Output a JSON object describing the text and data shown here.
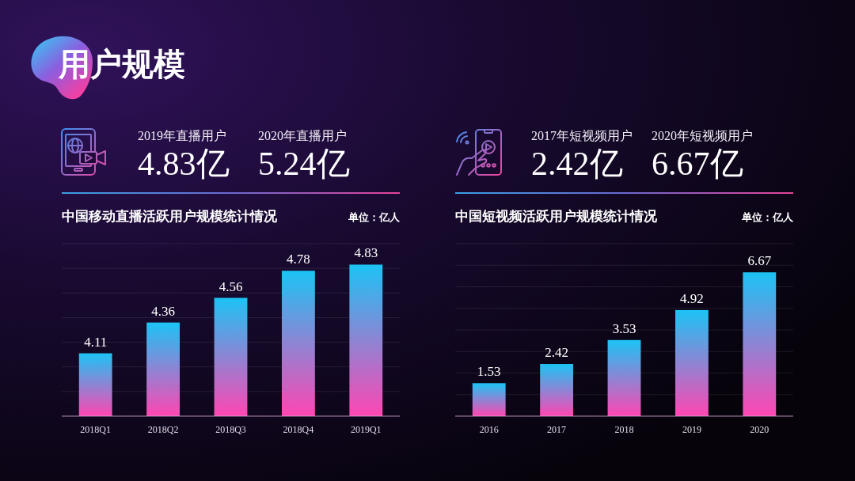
{
  "chart_data": [
    {
      "type": "other",
      "title": "用户规模"
    },
    {
      "type": "other",
      "annotations": [
        "2019年直播用户",
        "4.83亿",
        "2020年直播用户",
        "5.24亿"
      ]
    },
    {
      "type": "bar",
      "title": "中国移动直播活跃用户规模统计情况",
      "annotations": [
        "单位：亿人"
      ],
      "categories": [
        "2018Q1",
        "2018Q2",
        "2018Q3",
        "2018Q4",
        "2019Q1"
      ],
      "values": [
        4.11,
        4.36,
        4.56,
        4.78,
        4.83
      ],
      "color": "#1cc3f5",
      "ylim": [
        3.6,
        5.0
      ],
      "yticks": [
        {
          "value": 3.6,
          "label": null
        },
        {
          "value": 3.8,
          "label": null
        },
        {
          "value": 4.0,
          "label": null
        },
        {
          "value": 4.2,
          "label": null
        },
        {
          "value": 4.4,
          "label": null
        },
        {
          "value": 4.6,
          "label": null
        },
        {
          "value": 4.8,
          "label": null
        },
        {
          "value": 5.0,
          "label": null
        }
      ],
      "grid": "y",
      "tick_labels": "x",
      "data_labels": true
    },
    {
      "type": "other",
      "annotations": [
        "2017年短视频用户",
        "2.42亿",
        "2020年短视频用户",
        "6.67亿"
      ]
    },
    {
      "type": "bar",
      "title": "中国短视频活跃用户规模统计情况",
      "annotations": [
        "单位：亿人"
      ],
      "categories": [
        "2016",
        "2017",
        "2018",
        "2019",
        "2020"
      ],
      "values": [
        1.53,
        2.42,
        3.53,
        4.92,
        6.67
      ],
      "color": "#1cc3f5",
      "ylim": [
        0,
        8
      ],
      "yticks": [
        {
          "value": 0,
          "label": null
        },
        {
          "value": 1,
          "label": null
        },
        {
          "value": 2,
          "label": null
        },
        {
          "value": 3,
          "label": null
        },
        {
          "value": 4,
          "label": null
        },
        {
          "value": 5,
          "label": null
        },
        {
          "value": 6,
          "label": null
        },
        {
          "value": 7,
          "label": null
        },
        {
          "value": 8,
          "label": null
        }
      ],
      "grid": "y",
      "tick_labels": "x",
      "data_labels": true
    }
  ]
}
